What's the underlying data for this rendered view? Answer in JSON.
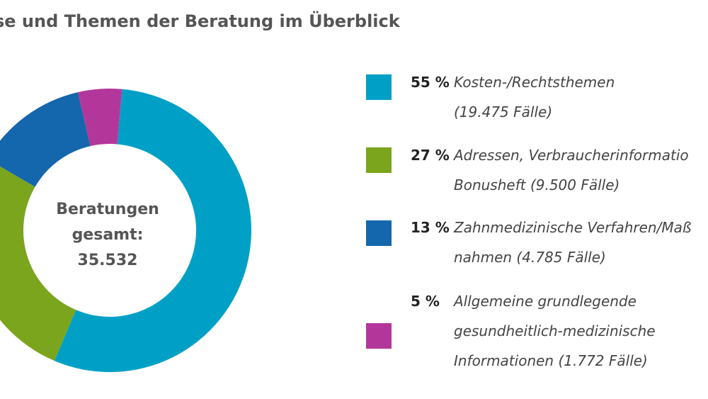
{
  "chart_data": {
    "type": "donut",
    "title": "se und Themen der Beratung im Überblick",
    "center_text": [
      "Beratungen",
      "gesamt:",
      "35.532"
    ],
    "categories": [
      "Kosten-/Rechtsthemen\n(19.475 Fälle)",
      "Adressen, Verbraucherinformatio\nBonusheft (9.500 Fälle)",
      "Zahnmedizinische Verfahren/Maß\nnahmen (4.785 Fälle)",
      "Allgemeine grundlegende\ngesundheitlich-medizinische\nInformationen (1.772 Fälle)"
    ],
    "values": [
      55,
      27,
      13,
      5
    ],
    "value_labels": [
      "55 %",
      "27 %",
      "13 %",
      "5 %"
    ],
    "colors": [
      "#00a0c6",
      "#7aa51c",
      "#1466ad",
      "#b3379b"
    ]
  }
}
